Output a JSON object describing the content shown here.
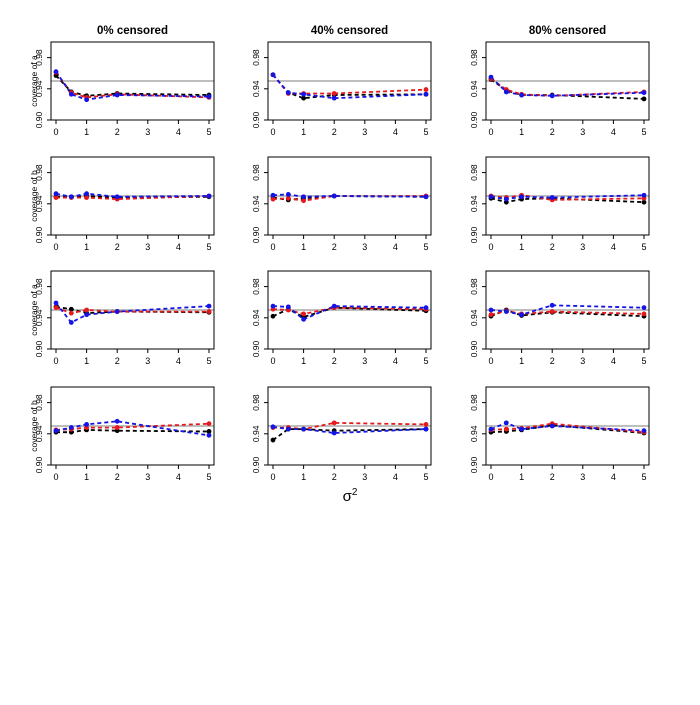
{
  "figure": {
    "column_titles": [
      "0% censored",
      "40% censored",
      "80% censored"
    ],
    "row_ylabels": [
      "coverage of a",
      "coverage of b",
      "coverage of a",
      "coverage of b"
    ],
    "xlabel_base": "σ",
    "xlabel_sup": "2"
  },
  "colors": {
    "reference": "#bebebe",
    "black": "#000000",
    "red": "#e41a1c",
    "blue": "#1414e6"
  },
  "chart_data": {
    "type": "line",
    "layout": "4x3 grid of small-multiple panels",
    "x": [
      0,
      0.5,
      1,
      2,
      5
    ],
    "xlim": [
      0,
      5
    ],
    "ylim": [
      0.9,
      1.0
    ],
    "xticks": [
      "0",
      "1",
      "2",
      "3",
      "4",
      "5"
    ],
    "yticks": [
      "0.90",
      "0.94",
      "0.98"
    ],
    "reference_line": 0.95,
    "series_colors": [
      "black",
      "red",
      "blue"
    ],
    "panels": [
      {
        "row": 0,
        "col": 0,
        "series": [
          {
            "name": "black",
            "values": [
              0.957,
              0.936,
              0.931,
              0.934,
              0.932
            ]
          },
          {
            "name": "red",
            "values": [
              0.961,
              0.935,
              0.929,
              0.933,
              0.929
            ]
          },
          {
            "name": "blue",
            "values": [
              0.962,
              0.933,
              0.926,
              0.932,
              0.93
            ]
          }
        ]
      },
      {
        "row": 0,
        "col": 1,
        "series": [
          {
            "name": "black",
            "values": [
              0.958,
              0.935,
              0.928,
              0.932,
              0.933
            ]
          },
          {
            "name": "red",
            "values": [
              0.958,
              0.934,
              0.934,
              0.934,
              0.939
            ]
          },
          {
            "name": "blue",
            "values": [
              0.958,
              0.935,
              0.933,
              0.928,
              0.933
            ]
          }
        ]
      },
      {
        "row": 0,
        "col": 2,
        "series": [
          {
            "name": "black",
            "values": [
              0.952,
              0.938,
              0.932,
              0.932,
              0.927
            ]
          },
          {
            "name": "red",
            "values": [
              0.953,
              0.939,
              0.933,
              0.931,
              0.936
            ]
          },
          {
            "name": "blue",
            "values": [
              0.955,
              0.936,
              0.932,
              0.931,
              0.935
            ]
          }
        ]
      },
      {
        "row": 1,
        "col": 0,
        "series": [
          {
            "name": "black",
            "values": [
              0.949,
              0.949,
              0.95,
              0.948,
              0.949
            ]
          },
          {
            "name": "red",
            "values": [
              0.948,
              0.948,
              0.948,
              0.946,
              0.95
            ]
          },
          {
            "name": "blue",
            "values": [
              0.953,
              0.949,
              0.953,
              0.949,
              0.95
            ]
          }
        ]
      },
      {
        "row": 1,
        "col": 1,
        "series": [
          {
            "name": "black",
            "values": [
              0.948,
              0.945,
              0.947,
              0.95,
              0.949
            ]
          },
          {
            "name": "red",
            "values": [
              0.946,
              0.947,
              0.944,
              0.95,
              0.95
            ]
          },
          {
            "name": "blue",
            "values": [
              0.951,
              0.952,
              0.949,
              0.95,
              0.949
            ]
          }
        ]
      },
      {
        "row": 1,
        "col": 2,
        "series": [
          {
            "name": "black",
            "values": [
              0.947,
              0.942,
              0.946,
              0.947,
              0.942
            ]
          },
          {
            "name": "red",
            "values": [
              0.95,
              0.948,
              0.951,
              0.945,
              0.947
            ]
          },
          {
            "name": "blue",
            "values": [
              0.949,
              0.946,
              0.949,
              0.948,
              0.951
            ]
          }
        ]
      },
      {
        "row": 2,
        "col": 0,
        "series": [
          {
            "name": "black",
            "values": [
              0.954,
              0.951,
              0.946,
              0.948,
              0.947
            ]
          },
          {
            "name": "red",
            "values": [
              0.953,
              0.946,
              0.95,
              0.948,
              0.948
            ]
          },
          {
            "name": "blue",
            "values": [
              0.959,
              0.934,
              0.944,
              0.948,
              0.955
            ]
          }
        ]
      },
      {
        "row": 2,
        "col": 1,
        "series": [
          {
            "name": "black",
            "values": [
              0.942,
              0.951,
              0.941,
              0.953,
              0.949
            ]
          },
          {
            "name": "red",
            "values": [
              0.951,
              0.95,
              0.945,
              0.953,
              0.951
            ]
          },
          {
            "name": "blue",
            "values": [
              0.955,
              0.954,
              0.938,
              0.955,
              0.953
            ]
          }
        ]
      },
      {
        "row": 2,
        "col": 2,
        "series": [
          {
            "name": "black",
            "values": [
              0.942,
              0.95,
              0.943,
              0.947,
              0.942
            ]
          },
          {
            "name": "red",
            "values": [
              0.944,
              0.949,
              0.945,
              0.948,
              0.945
            ]
          },
          {
            "name": "blue",
            "values": [
              0.95,
              0.948,
              0.944,
              0.956,
              0.953
            ]
          }
        ]
      },
      {
        "row": 3,
        "col": 0,
        "series": [
          {
            "name": "black",
            "values": [
              0.942,
              0.942,
              0.945,
              0.944,
              0.943
            ]
          },
          {
            "name": "red",
            "values": [
              0.945,
              0.946,
              0.948,
              0.948,
              0.953
            ]
          },
          {
            "name": "blue",
            "values": [
              0.944,
              0.948,
              0.952,
              0.956,
              0.938
            ]
          }
        ]
      },
      {
        "row": 3,
        "col": 1,
        "series": [
          {
            "name": "black",
            "values": [
              0.932,
              0.946,
              0.946,
              0.944,
              0.946
            ]
          },
          {
            "name": "red",
            "values": [
              0.948,
              0.948,
              0.946,
              0.954,
              0.952
            ]
          },
          {
            "name": "blue",
            "values": [
              0.949,
              0.946,
              0.946,
              0.941,
              0.946
            ]
          }
        ]
      },
      {
        "row": 3,
        "col": 2,
        "series": [
          {
            "name": "black",
            "values": [
              0.942,
              0.943,
              0.945,
              0.951,
              0.941
            ]
          },
          {
            "name": "red",
            "values": [
              0.945,
              0.946,
              0.947,
              0.953,
              0.942
            ]
          },
          {
            "name": "blue",
            "values": [
              0.946,
              0.954,
              0.946,
              0.95,
              0.944
            ]
          }
        ]
      }
    ]
  }
}
